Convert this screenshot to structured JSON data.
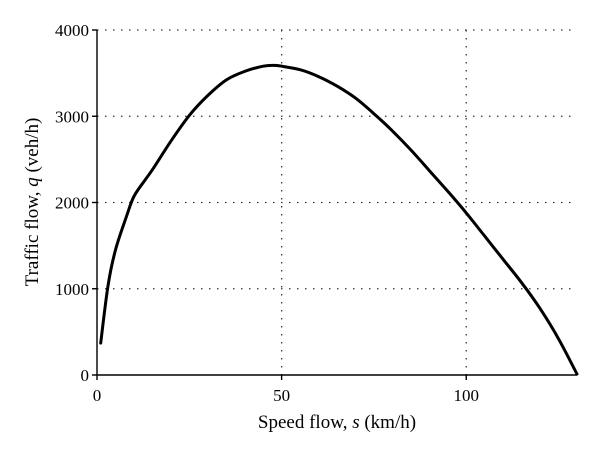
{
  "chart_data": {
    "type": "line",
    "xlabel_prefix": "Speed flow, ",
    "xlabel_var": "s",
    "xlabel_suffix": " (km/h)",
    "ylabel_prefix": "Traffic flow, ",
    "ylabel_var": "q",
    "ylabel_suffix": " (veh/h)",
    "xlim": [
      0,
      130
    ],
    "ylim": [
      0,
      4000
    ],
    "x_ticks": [
      0,
      50,
      100
    ],
    "y_ticks": [
      0,
      1000,
      2000,
      3000,
      4000
    ],
    "grid": true,
    "series": [
      {
        "x": [
          1,
          3,
          5,
          8,
          10,
          13,
          15,
          20,
          25,
          30,
          35,
          40,
          45,
          48,
          50,
          55,
          60,
          65,
          70,
          75,
          80,
          85,
          90,
          95,
          100,
          105,
          110,
          115,
          120,
          125,
          130
        ],
        "y": [
          370,
          1040,
          1450,
          1840,
          2070,
          2260,
          2380,
          2710,
          3010,
          3240,
          3420,
          3520,
          3580,
          3590,
          3580,
          3540,
          3460,
          3350,
          3210,
          3030,
          2830,
          2610,
          2370,
          2130,
          1880,
          1610,
          1340,
          1070,
          770,
          420,
          10
        ]
      }
    ]
  }
}
